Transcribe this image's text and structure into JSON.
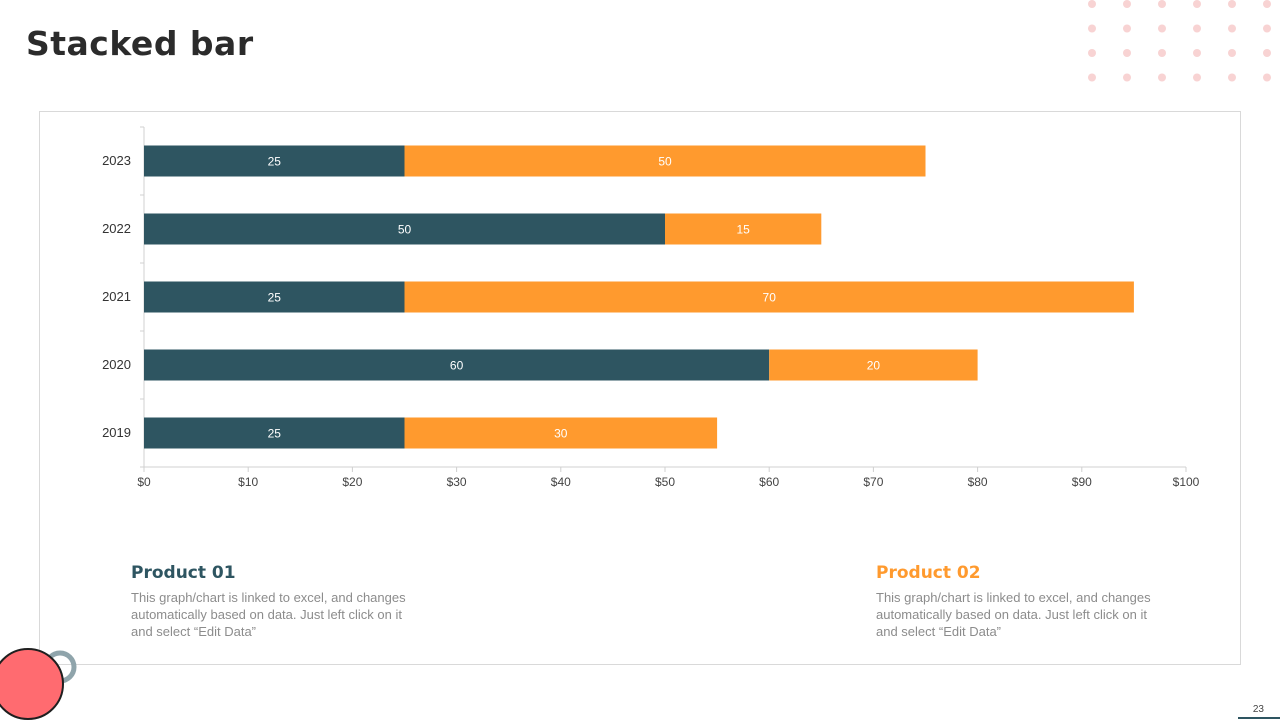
{
  "page": {
    "title": "Stacked bar",
    "page_number": "23"
  },
  "colors": {
    "product1": "#2e5561",
    "product2": "#ff9a2e",
    "accent_pink": "#ff6b70",
    "dots": "#f8d3d3",
    "ring": "#8fa4ab"
  },
  "products": [
    {
      "name": "Product 01",
      "description": "This graph/chart is linked to excel, and changes automatically based on data. Just left click on it and select “Edit Data”"
    },
    {
      "name": "Product 02",
      "description": "This graph/chart is linked to excel, and changes automatically based on data. Just left click on it and select “Edit Data”"
    }
  ],
  "chart_data": {
    "type": "bar",
    "orientation": "horizontal",
    "stacked": true,
    "categories": [
      "2023",
      "2022",
      "2021",
      "2020",
      "2019"
    ],
    "series": [
      {
        "name": "Product 01",
        "values": [
          25,
          50,
          25,
          60,
          25
        ]
      },
      {
        "name": "Product 02",
        "values": [
          50,
          15,
          70,
          20,
          30
        ]
      }
    ],
    "xlim": [
      0,
      100
    ],
    "xticks": [
      "$0",
      "$10",
      "$20",
      "$30",
      "$40",
      "$50",
      "$60",
      "$70",
      "$80",
      "$90",
      "$100"
    ],
    "title": "",
    "xlabel": "",
    "ylabel": "",
    "grid": false,
    "data_labels": true
  }
}
